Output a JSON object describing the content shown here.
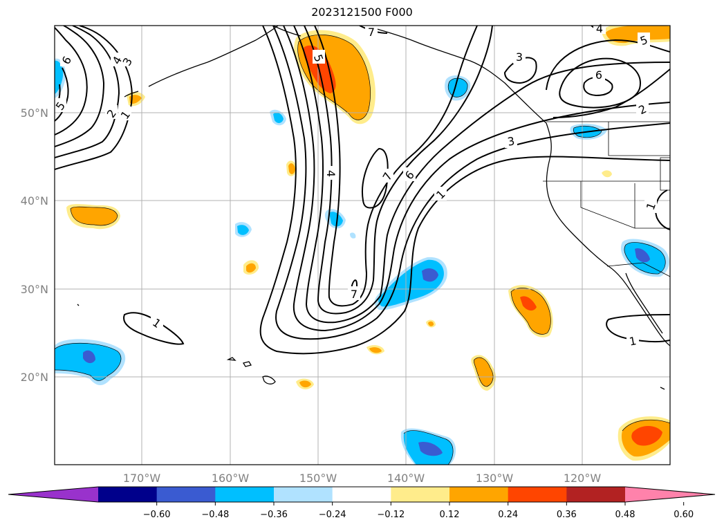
{
  "title": "2023121500 F000",
  "map": {
    "lat_labels": [
      "50°N",
      "40°N",
      "30°N",
      "20°N"
    ],
    "lon_labels": [
      "170°W",
      "160°W",
      "150°W",
      "140°W",
      "130°W",
      "120°W"
    ],
    "gridlines": true
  },
  "contours": {
    "color": "#000000",
    "labels": [
      "6",
      "4",
      "3",
      "5",
      "2",
      "1",
      "5",
      "7",
      "4",
      "7",
      "6",
      "1",
      "7",
      "1",
      "3",
      "6",
      "5",
      "2",
      "3",
      "1",
      "1",
      "4"
    ]
  },
  "colorbar": {
    "colors": [
      "#9932cc",
      "#00008b",
      "#3a5bd1",
      "#00bfff",
      "#b0e2ff",
      "#ffffff",
      "#ffec8b",
      "#ffa500",
      "#ff4500",
      "#b22222",
      "#ff82ab"
    ],
    "tick_labels": [
      "−0.60",
      "−0.48",
      "−0.36",
      "−0.24",
      "−0.12",
      "0.12",
      "0.24",
      "0.36",
      "0.48",
      "0.60"
    ]
  }
}
